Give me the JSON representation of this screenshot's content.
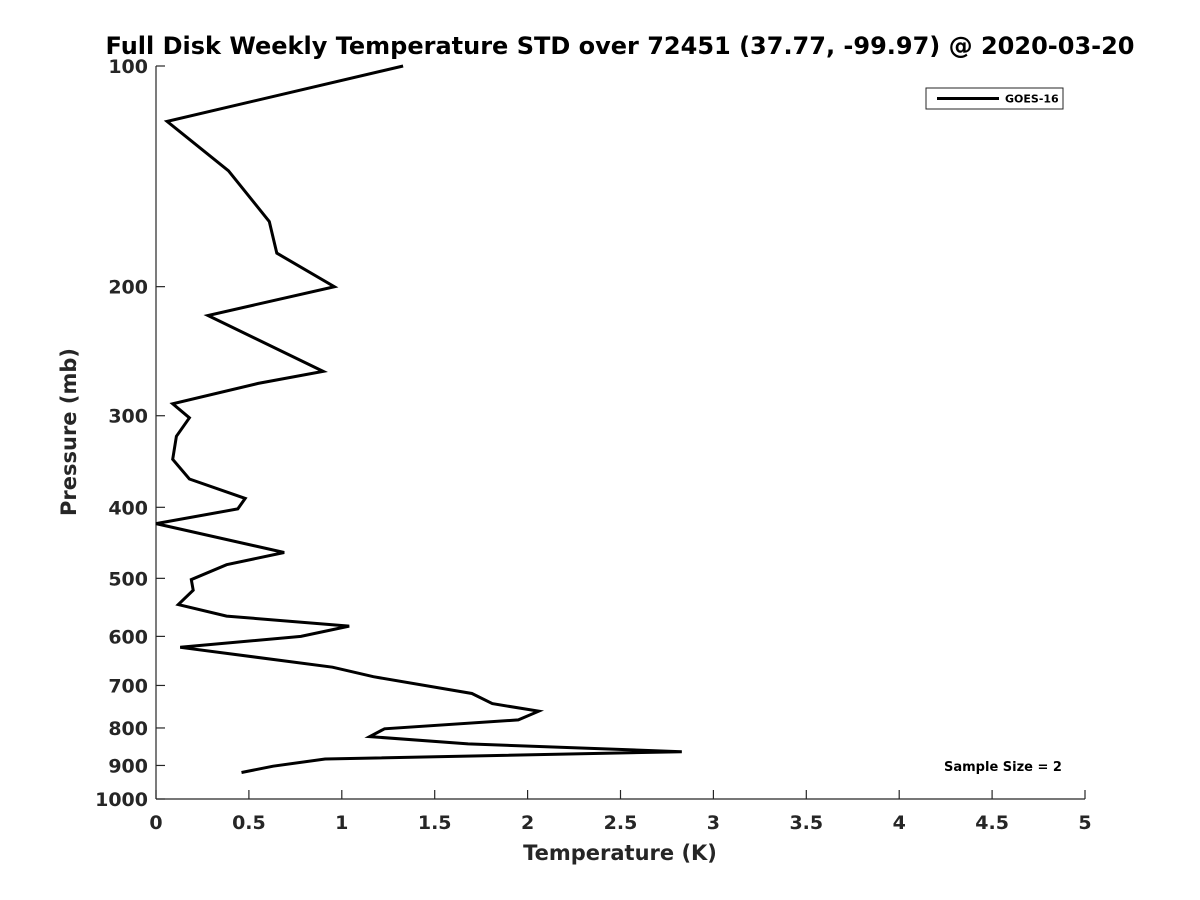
{
  "chart_data": {
    "type": "line",
    "title": "Full Disk Weekly Temperature STD over 72451 (37.77, -99.97) @ 2020-03-20",
    "xlabel": "Temperature (K)",
    "ylabel": "Pressure (mb)",
    "xlim": [
      0,
      5
    ],
    "ylim": [
      100,
      1000
    ],
    "y_scale": "log",
    "y_reversed": true,
    "xticks": [
      0,
      0.5,
      1,
      1.5,
      2,
      2.5,
      3,
      3.5,
      4,
      4.5,
      5
    ],
    "xtick_labels": [
      "0",
      "0.5",
      "1",
      "1.5",
      "2",
      "2.5",
      "3",
      "3.5",
      "4",
      "4.5",
      "5"
    ],
    "yticks": [
      100,
      200,
      300,
      400,
      500,
      600,
      700,
      800,
      900,
      1000
    ],
    "ytick_labels": [
      "100",
      "200",
      "300",
      "400",
      "500",
      "600",
      "700",
      "800",
      "900",
      "1000"
    ],
    "grid": false,
    "legend_position": "top-right",
    "series": [
      {
        "name": "GOES-16",
        "color": "#000000",
        "points": [
          {
            "x": 1.33,
            "p": 100
          },
          {
            "x": 0.06,
            "p": 119
          },
          {
            "x": 0.39,
            "p": 139
          },
          {
            "x": 0.61,
            "p": 163
          },
          {
            "x": 0.65,
            "p": 180
          },
          {
            "x": 0.96,
            "p": 200
          },
          {
            "x": 0.28,
            "p": 219
          },
          {
            "x": 0.9,
            "p": 261
          },
          {
            "x": 0.55,
            "p": 271
          },
          {
            "x": 0.09,
            "p": 289
          },
          {
            "x": 0.18,
            "p": 302
          },
          {
            "x": 0.11,
            "p": 320
          },
          {
            "x": 0.09,
            "p": 344
          },
          {
            "x": 0.18,
            "p": 366
          },
          {
            "x": 0.48,
            "p": 389
          },
          {
            "x": 0.44,
            "p": 402
          },
          {
            "x": 0.0,
            "p": 421
          },
          {
            "x": 0.69,
            "p": 461
          },
          {
            "x": 0.38,
            "p": 479
          },
          {
            "x": 0.19,
            "p": 502
          },
          {
            "x": 0.2,
            "p": 519
          },
          {
            "x": 0.12,
            "p": 543
          },
          {
            "x": 0.38,
            "p": 563
          },
          {
            "x": 1.04,
            "p": 581
          },
          {
            "x": 0.78,
            "p": 600
          },
          {
            "x": 0.13,
            "p": 621
          },
          {
            "x": 0.95,
            "p": 661
          },
          {
            "x": 1.17,
            "p": 681
          },
          {
            "x": 1.7,
            "p": 718
          },
          {
            "x": 1.81,
            "p": 741
          },
          {
            "x": 2.06,
            "p": 759
          },
          {
            "x": 1.95,
            "p": 780
          },
          {
            "x": 1.23,
            "p": 802
          },
          {
            "x": 1.15,
            "p": 822
          },
          {
            "x": 1.68,
            "p": 841
          },
          {
            "x": 2.83,
            "p": 862
          },
          {
            "x": 0.91,
            "p": 882
          },
          {
            "x": 0.63,
            "p": 902
          },
          {
            "x": 0.46,
            "p": 920
          }
        ]
      }
    ],
    "annotation": "Sample Size = 2"
  }
}
